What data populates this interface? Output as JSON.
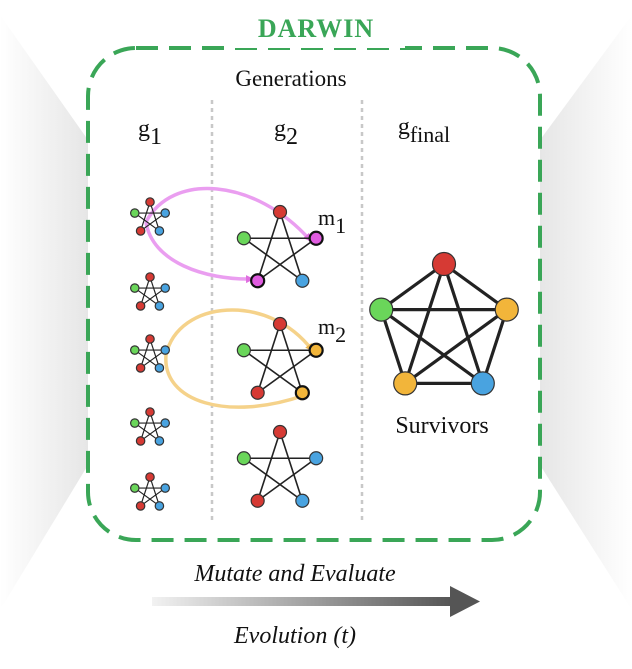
{
  "title": "DARWIN",
  "header": "Generations",
  "columns": {
    "g1": {
      "base": "g",
      "sub": "1"
    },
    "g2": {
      "base": "g",
      "sub": "2"
    },
    "gfinal": {
      "base": "g",
      "sub": "final"
    }
  },
  "mutations": {
    "m1": {
      "base": "m",
      "sub": "1"
    },
    "m2": {
      "base": "m",
      "sub": "2"
    }
  },
  "survivors_label": "Survivors",
  "footer": {
    "top": "Mutate and Evaluate",
    "bottom": "Evolution (t)"
  },
  "colors": {
    "accent_green": "#3aa657",
    "node_red": "#d63a34",
    "node_green": "#6ad65a",
    "node_blue": "#49a3e0",
    "node_yellow": "#f2b53a",
    "node_magenta": "#e05ce0",
    "arrow_pink": "#ea9ef0",
    "arrow_gold": "#f5d28a"
  },
  "icons": [
    "pentagram-graph-icon",
    "complete-graph-icon",
    "arrow-right-icon"
  ]
}
